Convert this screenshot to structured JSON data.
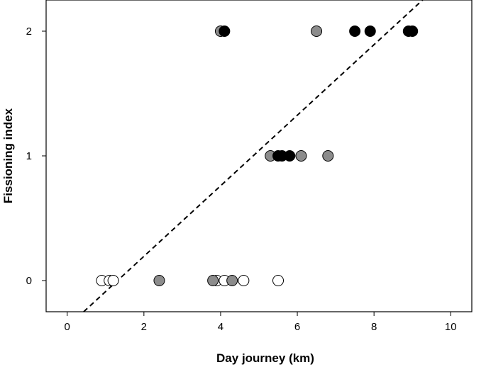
{
  "chart_data": {
    "type": "scatter",
    "title": "",
    "xlabel": "Day journey (km)",
    "ylabel": "Fissioning index",
    "xlim": [
      -0.55,
      10.55
    ],
    "ylim": [
      -0.25,
      2.25
    ],
    "x_ticks": [
      0,
      2,
      4,
      6,
      8,
      10
    ],
    "y_ticks": [
      0,
      1,
      2
    ],
    "grid": false,
    "legend": "none",
    "colors": {
      "white": "#ffffff",
      "gray": "#8c8c8c",
      "black": "#000000",
      "outline": "#000000"
    },
    "points": [
      {
        "x": 0.9,
        "y": 0,
        "fill": "white"
      },
      {
        "x": 1.1,
        "y": 0,
        "fill": "white"
      },
      {
        "x": 1.2,
        "y": 0,
        "fill": "white"
      },
      {
        "x": 2.4,
        "y": 0,
        "fill": "gray"
      },
      {
        "x": 3.8,
        "y": 0,
        "fill": "gray"
      },
      {
        "x": 3.9,
        "y": 0,
        "fill": "white"
      },
      {
        "x": 4.1,
        "y": 0,
        "fill": "white"
      },
      {
        "x": 4.3,
        "y": 0,
        "fill": "gray"
      },
      {
        "x": 4.6,
        "y": 0,
        "fill": "white"
      },
      {
        "x": 5.5,
        "y": 0,
        "fill": "white"
      },
      {
        "x": 5.3,
        "y": 1,
        "fill": "gray"
      },
      {
        "x": 5.5,
        "y": 1,
        "fill": "black"
      },
      {
        "x": 5.6,
        "y": 1,
        "fill": "black"
      },
      {
        "x": 5.8,
        "y": 1,
        "fill": "black"
      },
      {
        "x": 6.1,
        "y": 1,
        "fill": "gray"
      },
      {
        "x": 6.8,
        "y": 1,
        "fill": "gray"
      },
      {
        "x": 4.0,
        "y": 2,
        "fill": "gray"
      },
      {
        "x": 4.1,
        "y": 2,
        "fill": "black"
      },
      {
        "x": 6.5,
        "y": 2,
        "fill": "gray"
      },
      {
        "x": 7.5,
        "y": 2,
        "fill": "black"
      },
      {
        "x": 7.9,
        "y": 2,
        "fill": "black"
      },
      {
        "x": 8.9,
        "y": 2,
        "fill": "black"
      },
      {
        "x": 9.0,
        "y": 2,
        "fill": "black"
      }
    ],
    "fit_line": {
      "style": "dashed",
      "slope": 0.2829,
      "intercept": -0.3714
    }
  }
}
